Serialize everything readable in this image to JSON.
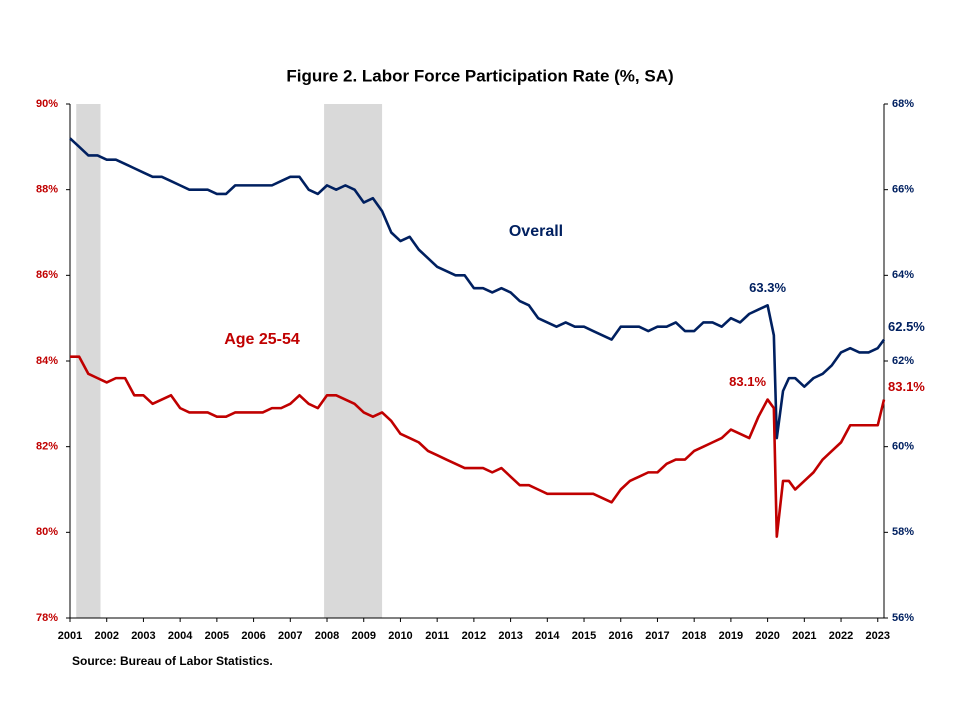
{
  "chart_data": {
    "type": "line",
    "title": "Figure 2. Labor Force Participation  Rate (%, SA)",
    "source": "Source: Bureau of Labor Statistics.",
    "x": [
      2001,
      2001.25,
      2001.5,
      2001.75,
      2002,
      2002.25,
      2002.5,
      2002.75,
      2003,
      2003.25,
      2003.5,
      2003.75,
      2004,
      2004.25,
      2004.5,
      2004.75,
      2005,
      2005.25,
      2005.5,
      2005.75,
      2006,
      2006.25,
      2006.5,
      2006.75,
      2007,
      2007.25,
      2007.5,
      2007.75,
      2008,
      2008.25,
      2008.5,
      2008.75,
      2009,
      2009.25,
      2009.5,
      2009.75,
      2010,
      2010.25,
      2010.5,
      2010.75,
      2011,
      2011.25,
      2011.5,
      2011.75,
      2012,
      2012.25,
      2012.5,
      2012.75,
      2013,
      2013.25,
      2013.5,
      2013.75,
      2014,
      2014.25,
      2014.5,
      2014.75,
      2015,
      2015.25,
      2015.5,
      2015.75,
      2016,
      2016.25,
      2016.5,
      2016.75,
      2017,
      2017.25,
      2017.5,
      2017.75,
      2018,
      2018.25,
      2018.5,
      2018.75,
      2019,
      2019.25,
      2019.5,
      2019.75,
      2020,
      2020.17,
      2020.25,
      2020.42,
      2020.58,
      2020.75,
      2021,
      2021.25,
      2021.5,
      2021.75,
      2022,
      2022.25,
      2022.5,
      2022.75,
      2023,
      2023.17
    ],
    "xlim": [
      2001,
      2023.17
    ],
    "xticks": [
      2001,
      2002,
      2003,
      2004,
      2005,
      2006,
      2007,
      2008,
      2009,
      2010,
      2011,
      2012,
      2013,
      2014,
      2015,
      2016,
      2017,
      2018,
      2019,
      2020,
      2021,
      2022,
      2023
    ],
    "ylim": [
      78,
      90
    ],
    "yticks": [
      {
        "value": 78,
        "label": "78%"
      },
      {
        "value": 80,
        "label": "80%"
      },
      {
        "value": 82,
        "label": "82%"
      },
      {
        "value": 84,
        "label": "84%"
      },
      {
        "value": 86,
        "label": "86%"
      },
      {
        "value": 88,
        "label": "88%"
      },
      {
        "value": 90,
        "label": "90%"
      }
    ],
    "y2lim": [
      56,
      68
    ],
    "y2ticks": [
      {
        "value": 56,
        "label": "56%"
      },
      {
        "value": 58,
        "label": "58%"
      },
      {
        "value": 60,
        "label": "60%"
      },
      {
        "value": 62,
        "label": "62%"
      },
      {
        "value": 64,
        "label": "64%"
      },
      {
        "value": 66,
        "label": "66%"
      },
      {
        "value": 68,
        "label": "68%"
      }
    ],
    "recessions": [
      [
        2001.17,
        2001.83
      ],
      [
        2007.92,
        2009.5
      ]
    ],
    "recession_color": "#d9d9d9",
    "series": [
      {
        "name": "Overall",
        "color": "#002060",
        "axis": "y2",
        "values": [
          67.2,
          67.0,
          66.8,
          66.8,
          66.7,
          66.7,
          66.6,
          66.5,
          66.4,
          66.3,
          66.3,
          66.2,
          66.1,
          66.0,
          66.0,
          66.0,
          65.9,
          65.9,
          66.1,
          66.1,
          66.1,
          66.1,
          66.1,
          66.2,
          66.3,
          66.3,
          66.0,
          65.9,
          66.1,
          66.0,
          66.1,
          66.0,
          65.7,
          65.8,
          65.5,
          65.0,
          64.8,
          64.9,
          64.6,
          64.4,
          64.2,
          64.1,
          64.0,
          64.0,
          63.7,
          63.7,
          63.6,
          63.7,
          63.6,
          63.4,
          63.3,
          63.0,
          62.9,
          62.8,
          62.9,
          62.8,
          62.8,
          62.7,
          62.6,
          62.5,
          62.8,
          62.8,
          62.8,
          62.7,
          62.8,
          62.8,
          62.9,
          62.7,
          62.7,
          62.9,
          62.9,
          62.8,
          63.0,
          62.9,
          63.1,
          63.2,
          63.3,
          62.6,
          60.2,
          61.3,
          61.6,
          61.6,
          61.4,
          61.6,
          61.7,
          61.9,
          62.2,
          62.3,
          62.2,
          62.2,
          62.3,
          62.5
        ],
        "value_labels": [
          null,
          null,
          null,
          null,
          null,
          null,
          null,
          null,
          null,
          null,
          null,
          null,
          null,
          null,
          null,
          null,
          null,
          null,
          null,
          null,
          null,
          null,
          null,
          null,
          null,
          null,
          null,
          null,
          null,
          null,
          null,
          null,
          null,
          null,
          null,
          null,
          null,
          null,
          null,
          null,
          null,
          null,
          null,
          null,
          null,
          null,
          null,
          null,
          null,
          null,
          null,
          null,
          null,
          null,
          null,
          null,
          null,
          null,
          null,
          null,
          null,
          null,
          null,
          null,
          null,
          null,
          null,
          null,
          null,
          null,
          null,
          null,
          null,
          null,
          null,
          null,
          "63.3%",
          null,
          null,
          null,
          null,
          null,
          null,
          null,
          null,
          null,
          null,
          null,
          null,
          null,
          null,
          "62.5%"
        ]
      },
      {
        "name": "Age 25-54",
        "color": "#c00000",
        "values": [
          84.1,
          84.1,
          83.7,
          83.6,
          83.5,
          83.6,
          83.6,
          83.2,
          83.2,
          83.0,
          83.1,
          83.2,
          82.9,
          82.8,
          82.8,
          82.8,
          82.7,
          82.7,
          82.8,
          82.8,
          82.8,
          82.8,
          82.9,
          82.9,
          83.0,
          83.2,
          83.0,
          82.9,
          83.2,
          83.2,
          83.1,
          83.0,
          82.8,
          82.7,
          82.8,
          82.6,
          82.3,
          82.2,
          82.1,
          81.9,
          81.8,
          81.7,
          81.6,
          81.5,
          81.5,
          81.5,
          81.4,
          81.5,
          81.3,
          81.1,
          81.1,
          81.0,
          80.9,
          80.9,
          80.9,
          80.9,
          80.9,
          80.9,
          80.8,
          80.7,
          81.0,
          81.2,
          81.3,
          81.4,
          81.4,
          81.6,
          81.7,
          81.7,
          81.9,
          82.0,
          82.1,
          82.2,
          82.4,
          82.3,
          82.2,
          82.7,
          83.1,
          82.9,
          79.9,
          81.2,
          81.2,
          81.0,
          81.2,
          81.4,
          81.7,
          81.9,
          82.1,
          82.5,
          82.5,
          82.5,
          82.5,
          83.1
        ],
        "value_labels": [
          null,
          null,
          null,
          null,
          null,
          null,
          null,
          null,
          null,
          null,
          null,
          null,
          null,
          null,
          null,
          null,
          null,
          null,
          null,
          null,
          null,
          null,
          null,
          null,
          null,
          null,
          null,
          null,
          null,
          null,
          null,
          null,
          null,
          null,
          null,
          null,
          null,
          null,
          null,
          null,
          null,
          null,
          null,
          null,
          null,
          null,
          null,
          null,
          null,
          null,
          null,
          null,
          null,
          null,
          null,
          null,
          null,
          null,
          null,
          null,
          null,
          null,
          null,
          null,
          null,
          null,
          null,
          null,
          null,
          null,
          null,
          null,
          null,
          null,
          null,
          null,
          "83.1%",
          null,
          null,
          null,
          null,
          null,
          null,
          null,
          null,
          null,
          null,
          null,
          null,
          null,
          null,
          "83.1%"
        ]
      }
    ]
  }
}
